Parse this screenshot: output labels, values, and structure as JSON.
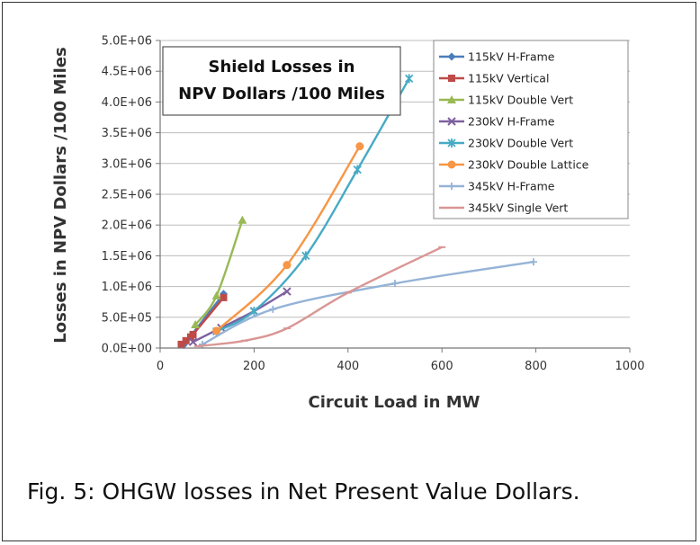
{
  "chart_data": {
    "type": "line",
    "title": "Shield Losses in NPV Dollars /100 Miles",
    "title_lines": [
      "Shield Losses in",
      "NPV Dollars /100 Miles"
    ],
    "xlabel": "Circuit Load in MW",
    "ylabel": "Losses in NPV Dollars /100 Miles",
    "xlim": [
      0,
      1000
    ],
    "ylim": [
      0,
      5000000
    ],
    "x_ticks": [
      "0",
      "200",
      "400",
      "600",
      "800",
      "1000"
    ],
    "y_ticks": [
      "0.0E+00",
      "5.0E+05",
      "1.0E+06",
      "1.5E+06",
      "2.0E+06",
      "2.5E+06",
      "3.0E+06",
      "3.5E+06",
      "4.0E+06",
      "4.5E+06",
      "5.0E+06"
    ],
    "grid": "horizontal",
    "legend_position": "right",
    "series": [
      {
        "name": "115kV H-Frame",
        "color": "#4a7ebb",
        "marker": "diamond",
        "x": [
          50,
          135
        ],
        "y": [
          50000,
          880000
        ]
      },
      {
        "name": "115kV Vertical",
        "color": "#be4b48",
        "marker": "square",
        "x": [
          45,
          55,
          65,
          70,
          135
        ],
        "y": [
          60000,
          120000,
          180000,
          220000,
          820000
        ]
      },
      {
        "name": "115kV Double Vert",
        "color": "#98b954",
        "marker": "triangle",
        "x": [
          75,
          120,
          175
        ],
        "y": [
          380000,
          850000,
          2080000
        ]
      },
      {
        "name": "230kV H-Frame",
        "color": "#7d60a0",
        "marker": "x",
        "x": [
          70,
          130,
          200,
          270
        ],
        "y": [
          100000,
          330000,
          600000,
          920000
        ]
      },
      {
        "name": "230kV Double Vert",
        "color": "#46aac5",
        "marker": "star",
        "x": [
          120,
          200,
          310,
          420,
          530
        ],
        "y": [
          270000,
          600000,
          1500000,
          2900000,
          4380000
        ]
      },
      {
        "name": "230kV Double Lattice",
        "color": "#f79646",
        "marker": "circle",
        "x": [
          120,
          270,
          425
        ],
        "y": [
          280000,
          1350000,
          3280000
        ]
      },
      {
        "name": "345kV H-Frame",
        "color": "#95b3d7",
        "marker": "plus",
        "x": [
          90,
          240,
          500,
          795
        ],
        "y": [
          60000,
          630000,
          1050000,
          1400000
        ]
      },
      {
        "name": "345kV Single Vert",
        "color": "#d99694",
        "marker": "dash",
        "x": [
          80,
          180,
          270,
          400,
          600
        ],
        "y": [
          30000,
          120000,
          320000,
          900000,
          1640000
        ]
      }
    ]
  },
  "caption": "Fig. 5: OHGW losses in Net Present Value Dollars."
}
